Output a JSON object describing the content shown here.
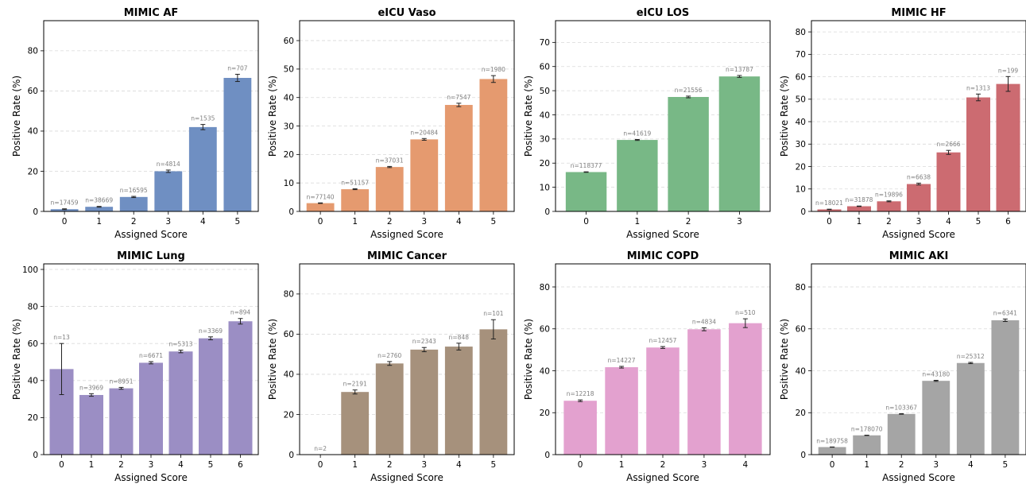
{
  "figure": {
    "xlabel": "Assigned Score",
    "ylabel": "Positive Rate (%)"
  },
  "chart_data": [
    {
      "type": "bar",
      "title": "MIMIC AF",
      "color": "#6f8fc2",
      "categories": [
        "0",
        "1",
        "2",
        "3",
        "4",
        "5"
      ],
      "values": [
        1.1,
        2.3,
        7.2,
        20.0,
        42.0,
        66.5
      ],
      "errors": [
        0.2,
        0.2,
        0.3,
        0.6,
        1.3,
        1.8
      ],
      "n_labels": [
        "n=17459",
        "n=38669",
        "n=16595",
        "n=4814",
        "n=1535",
        "n=707"
      ],
      "ylim": [
        0,
        95
      ],
      "yticks": [
        0,
        20,
        40,
        60,
        80
      ],
      "xlabel": "Assigned Score",
      "ylabel": "Positive Rate (%)"
    },
    {
      "type": "bar",
      "title": "eICU Vaso",
      "color": "#e59a6f",
      "categories": [
        "0",
        "1",
        "2",
        "3",
        "4",
        "5"
      ],
      "values": [
        2.9,
        7.8,
        15.6,
        25.3,
        37.4,
        46.5
      ],
      "errors": [
        0.1,
        0.15,
        0.2,
        0.3,
        0.6,
        1.2
      ],
      "n_labels": [
        "n=77140",
        "n=51157",
        "n=37031",
        "n=20484",
        "n=7547",
        "n=1980"
      ],
      "ylim": [
        0,
        67
      ],
      "yticks": [
        0,
        10,
        20,
        30,
        40,
        50,
        60
      ],
      "xlabel": "Assigned Score",
      "ylabel": "Positive Rate (%)"
    },
    {
      "type": "bar",
      "title": "eICU LOS",
      "color": "#78b886",
      "categories": [
        "0",
        "1",
        "2",
        "3"
      ],
      "values": [
        16.3,
        29.6,
        47.4,
        55.9
      ],
      "errors": [
        0.1,
        0.2,
        0.35,
        0.4
      ],
      "n_labels": [
        "n=118377",
        "n=41619",
        "n=21556",
        "n=13787"
      ],
      "ylim": [
        0,
        79
      ],
      "yticks": [
        0,
        10,
        20,
        30,
        40,
        50,
        60,
        70
      ],
      "xlabel": "Assigned Score",
      "ylabel": "Positive Rate (%)"
    },
    {
      "type": "bar",
      "title": "MIMIC HF",
      "color": "#cc6b71",
      "categories": [
        "0",
        "1",
        "2",
        "3",
        "4",
        "5",
        "6"
      ],
      "values": [
        0.9,
        2.3,
        4.5,
        12.2,
        26.3,
        50.8,
        56.8
      ],
      "errors": [
        0.1,
        0.1,
        0.2,
        0.4,
        0.9,
        1.5,
        3.3
      ],
      "n_labels": [
        "n=18021",
        "n=31878",
        "n=19896",
        "n=6638",
        "n=2666",
        "n=1313",
        "n=199"
      ],
      "ylim": [
        0,
        85
      ],
      "yticks": [
        0,
        10,
        20,
        30,
        40,
        50,
        60,
        70,
        80
      ],
      "xlabel": "Assigned Score",
      "ylabel": "Positive Rate (%)"
    },
    {
      "type": "bar",
      "title": "MIMIC Lung",
      "color": "#9b8ec4",
      "categories": [
        "0",
        "1",
        "2",
        "3",
        "4",
        "5",
        "6"
      ],
      "values": [
        46.2,
        32.2,
        35.8,
        49.6,
        55.7,
        62.8,
        72.0
      ],
      "errors": [
        13.8,
        0.7,
        0.5,
        0.6,
        0.7,
        0.8,
        1.5
      ],
      "n_labels": [
        "n=13",
        "n=3969",
        "n=8951",
        "n=6671",
        "n=5313",
        "n=3369",
        "n=894"
      ],
      "ylim": [
        0,
        103
      ],
      "yticks": [
        0,
        20,
        40,
        60,
        80,
        100
      ],
      "xlabel": "Assigned Score",
      "ylabel": "Positive Rate (%)"
    },
    {
      "type": "bar",
      "title": "MIMIC Cancer",
      "color": "#a6917c",
      "categories": [
        "0",
        "1",
        "2",
        "3",
        "4",
        "5"
      ],
      "values": [
        0.0,
        31.2,
        45.4,
        52.3,
        53.8,
        62.4
      ],
      "errors": [
        0.0,
        1.0,
        0.95,
        1.05,
        1.7,
        4.8
      ],
      "n_labels": [
        "n=2",
        "n=2191",
        "n=2760",
        "n=2343",
        "n=848",
        "n=101"
      ],
      "ylim": [
        0,
        95
      ],
      "yticks": [
        0,
        20,
        40,
        60,
        80
      ],
      "xlabel": "Assigned Score",
      "ylabel": "Positive Rate (%)"
    },
    {
      "type": "bar",
      "title": "MIMIC COPD",
      "color": "#e3a1cf",
      "categories": [
        "0",
        "1",
        "2",
        "3",
        "4"
      ],
      "values": [
        25.7,
        41.7,
        51.1,
        59.8,
        62.7
      ],
      "errors": [
        0.4,
        0.4,
        0.45,
        0.7,
        2.1
      ],
      "n_labels": [
        "n=12218",
        "n=14227",
        "n=12457",
        "n=4834",
        "n=510"
      ],
      "ylim": [
        0,
        91
      ],
      "yticks": [
        0,
        20,
        40,
        60,
        80
      ],
      "xlabel": "Assigned Score",
      "ylabel": "Positive Rate (%)"
    },
    {
      "type": "bar",
      "title": "MIMIC AKI",
      "color": "#a5a5a5",
      "categories": [
        "0",
        "1",
        "2",
        "3",
        "4",
        "5"
      ],
      "values": [
        3.6,
        9.2,
        19.4,
        35.2,
        43.7,
        64.1
      ],
      "errors": [
        0.05,
        0.08,
        0.12,
        0.25,
        0.3,
        0.6
      ],
      "n_labels": [
        "n=189758",
        "n=178070",
        "n=103367",
        "n=43180",
        "n=25312",
        "n=6341"
      ],
      "ylim": [
        0,
        91
      ],
      "yticks": [
        0,
        20,
        40,
        60,
        80
      ],
      "xlabel": "Assigned Score",
      "ylabel": "Positive Rate (%)"
    }
  ]
}
